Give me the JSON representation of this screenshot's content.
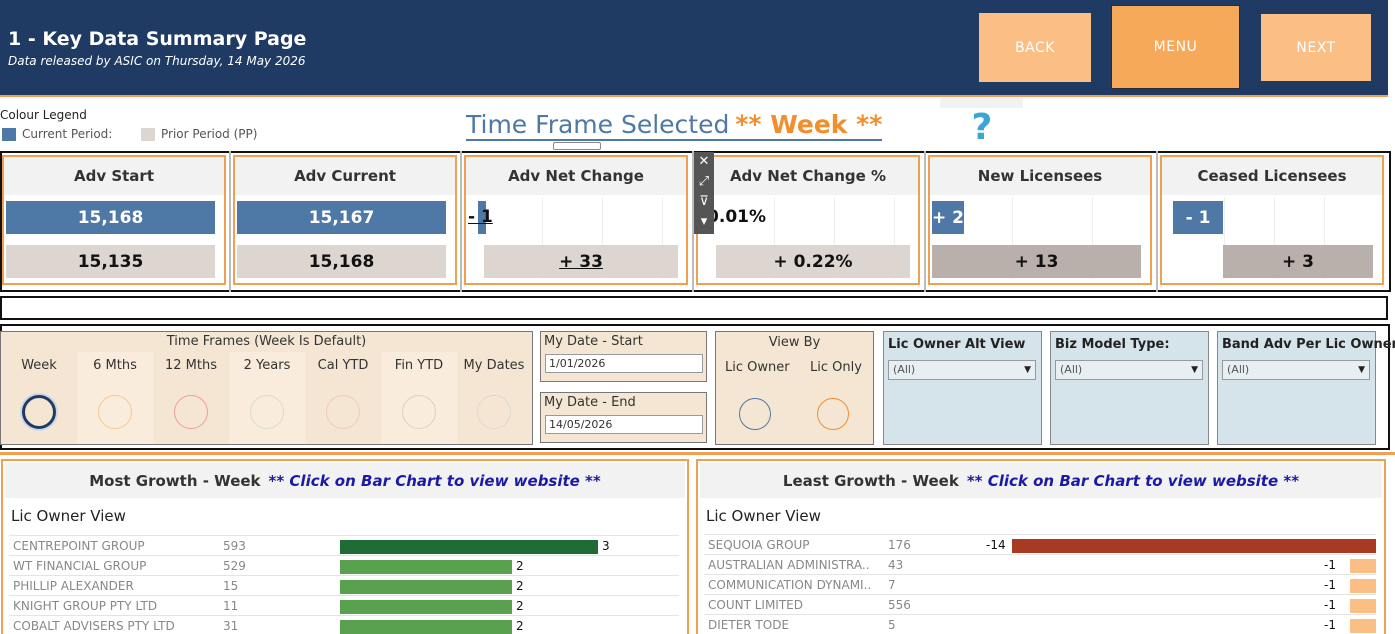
{
  "header": {
    "title": "1 - Key Data Summary Page",
    "subtitle": "Data released by ASIC on Thursday, 14 May 2026",
    "back_label": "BACK",
    "menu_label": "MENU",
    "next_label": "NEXT",
    "bg_color": "#1f3b64",
    "button_color": "#fbbf86"
  },
  "legend": {
    "title": "Colour Legend",
    "current_label": "Current Period:",
    "prior_label": "Prior Period (PP)",
    "current_color": "#4e79a7",
    "prior_color": "#ddd5d0"
  },
  "timeframe": {
    "label": "Time Frame Selected",
    "value": "** Week **",
    "help_icon": "?"
  },
  "kpis": [
    {
      "title": "Adv Start",
      "current": "15,168",
      "prior": "15,135"
    },
    {
      "title": "Adv Current",
      "current": "15,167",
      "prior": "15,168"
    },
    {
      "title": "Adv Net Change",
      "current": "- 1",
      "prior": "+ 33"
    },
    {
      "title": "Adv Net Change %",
      "current": "-0.01%",
      "prior": "+ 0.22%"
    },
    {
      "title": "New Licensees",
      "current": "+ 2",
      "prior": "+ 13"
    },
    {
      "title": "Ceased Licensees",
      "current": "- 1",
      "prior": "+ 3"
    }
  ],
  "toolbar": {
    "close_icon": "✕",
    "popout_icon": "⤢",
    "filter_icon": "⊽",
    "more_icon": "▾"
  },
  "time_frames": {
    "title": "Time Frames (Week Is Default)",
    "options": [
      {
        "label": "Week",
        "color": "#1f3b64",
        "selected": true
      },
      {
        "label": "6 Mths",
        "color": "#f7c98e",
        "selected": false
      },
      {
        "label": "12 Mths",
        "color": "#ee9c9c",
        "selected": false
      },
      {
        "label": "2 Years",
        "color": "#d8dcc9",
        "selected": false
      },
      {
        "label": "Cal YTD",
        "color": "#f2c9b5",
        "selected": false
      },
      {
        "label": "Fin YTD",
        "color": "#d9d0c7",
        "selected": false
      },
      {
        "label": "My Dates",
        "color": "#dcd8d0",
        "selected": false
      }
    ]
  },
  "my_date": {
    "start_label": "My Date - Start",
    "start_value": "1/01/2026",
    "end_label": "My Date - End",
    "end_value": "14/05/2026"
  },
  "view_by": {
    "title": "View By",
    "options": [
      {
        "label": "Lic Owner",
        "color": "#4e79a7"
      },
      {
        "label": "Lic Only",
        "color": "#f28e2b"
      }
    ]
  },
  "dropdowns": [
    {
      "label": "Lic Owner Alt View",
      "value": "(All)"
    },
    {
      "label": "Biz Model Type:",
      "value": "(All)"
    },
    {
      "label": "Band Adv Per Lic Owner",
      "value": "(All)"
    }
  ],
  "most_growth": {
    "title": "Most Growth - Week",
    "note": "** Click on Bar Chart to view website **",
    "subtitle": "Lic Owner View",
    "rows": [
      {
        "name": "CENTREPOINT GROUP",
        "count": "593",
        "change": 3,
        "color": "#1e6b35"
      },
      {
        "name": "WT FINANCIAL GROUP",
        "count": "529",
        "change": 2,
        "color": "#59a14f"
      },
      {
        "name": "PHILLIP  ALEXANDER",
        "count": "15",
        "change": 2,
        "color": "#59a14f"
      },
      {
        "name": "KNIGHT GROUP PTY LTD",
        "count": "11",
        "change": 2,
        "color": "#59a14f"
      },
      {
        "name": "COBALT ADVISERS PTY LTD",
        "count": "31",
        "change": 2,
        "color": "#59a14f"
      }
    ]
  },
  "least_growth": {
    "title": "Least Growth - Week",
    "note": "** Click on Bar Chart to view website **",
    "subtitle": "Lic Owner View",
    "rows": [
      {
        "name": "SEQUOIA GROUP",
        "count": "176",
        "change": -14,
        "color": "#a83a22"
      },
      {
        "name": "AUSTRALIAN ADMINISTRA..",
        "count": "43",
        "change": -1,
        "color": "#fbbf86"
      },
      {
        "name": "COMMUNICATION DYNAMI..",
        "count": "7",
        "change": -1,
        "color": "#fbbf86"
      },
      {
        "name": "COUNT LIMITED",
        "count": "556",
        "change": -1,
        "color": "#fbbf86"
      },
      {
        "name": "DIETER  TODE",
        "count": "5",
        "change": -1,
        "color": "#fbbf86"
      }
    ]
  }
}
